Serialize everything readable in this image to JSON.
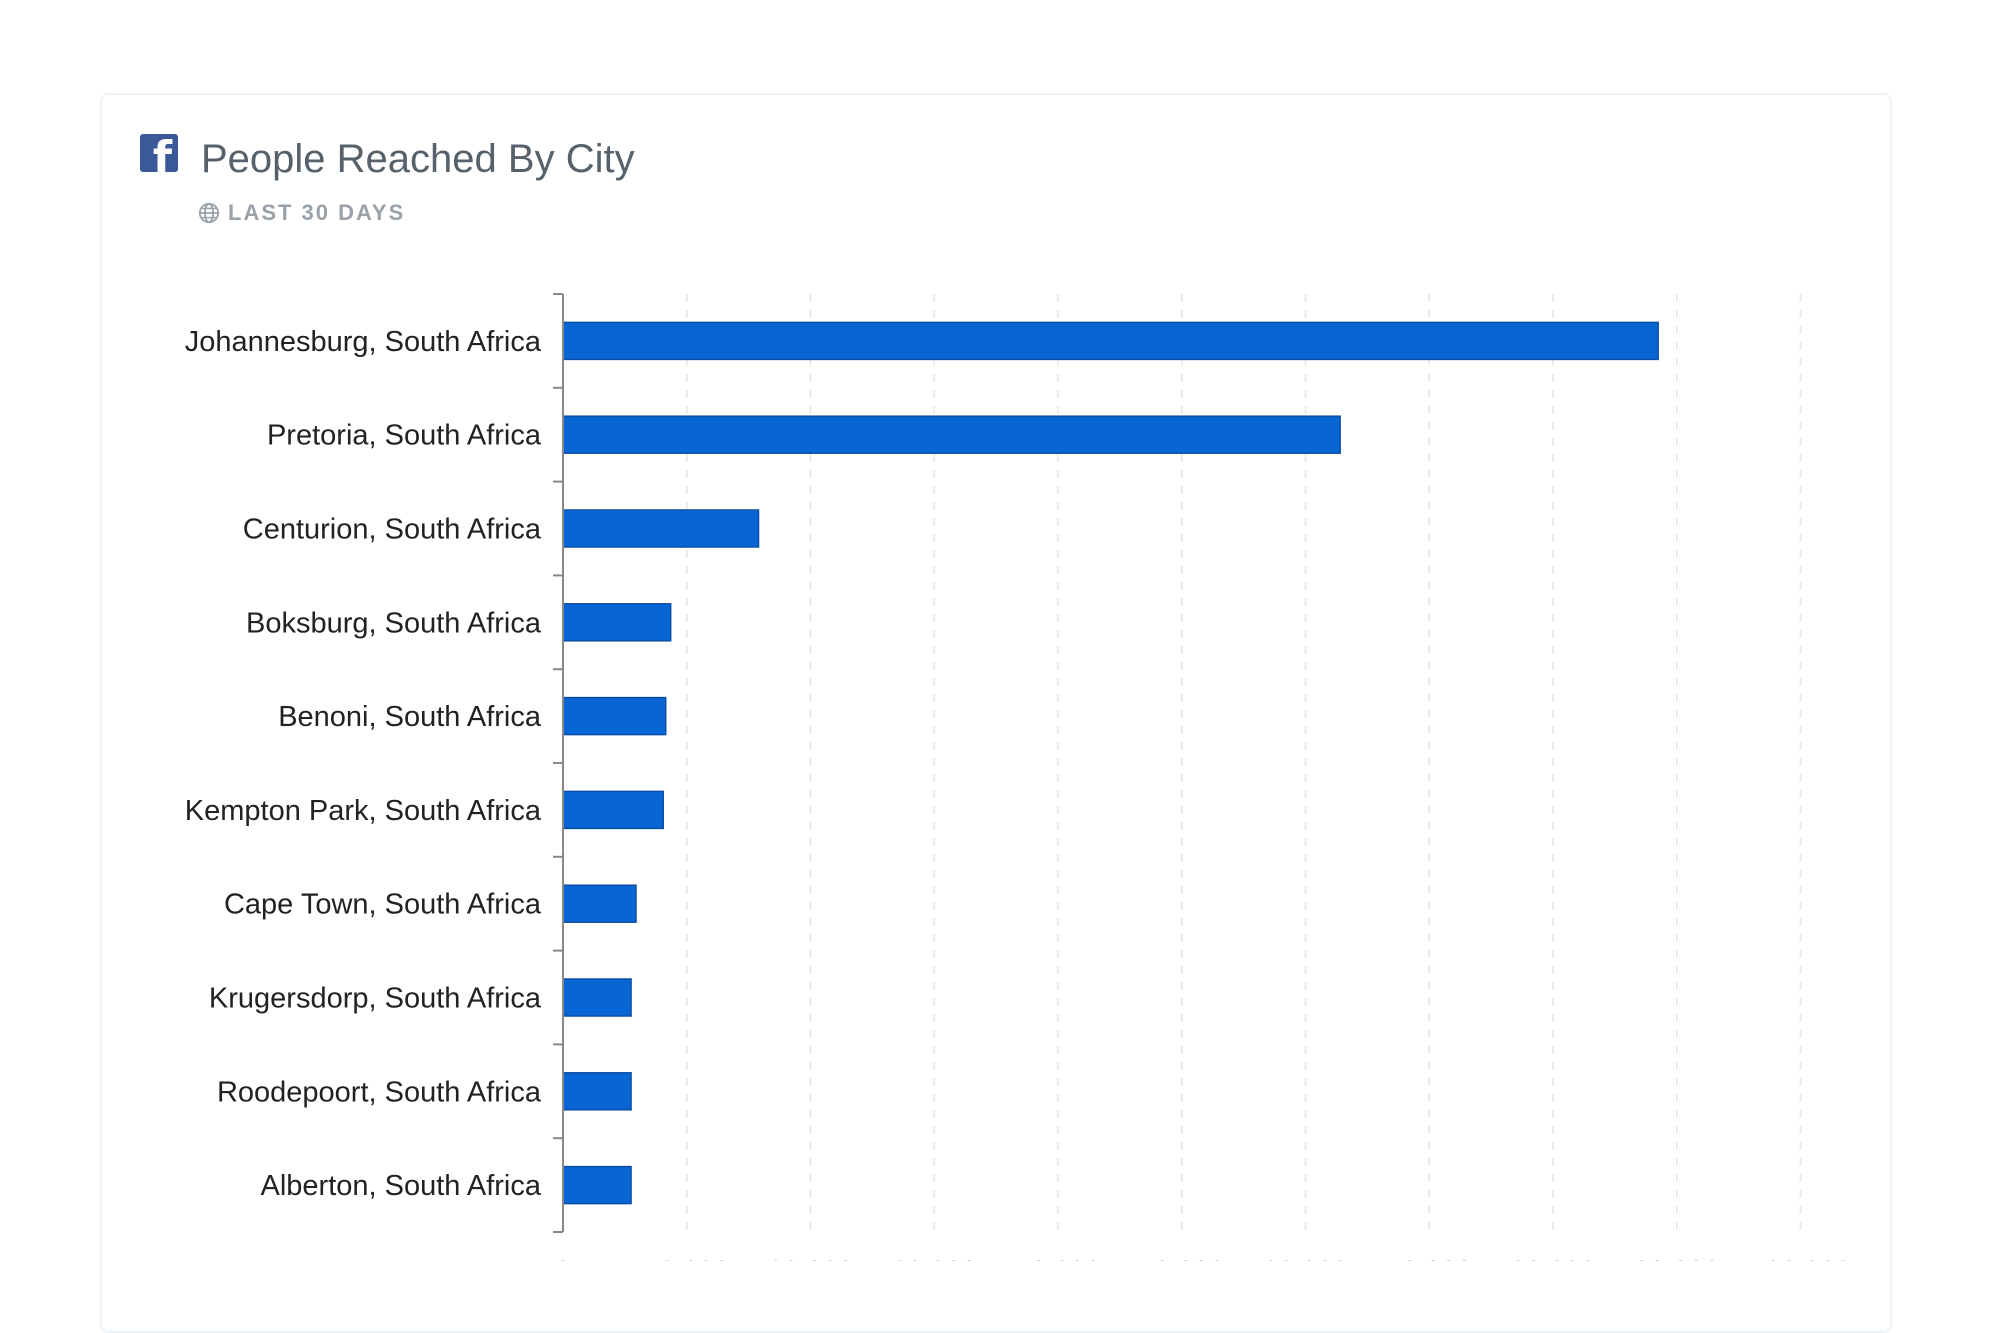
{
  "header": {
    "icon": "facebook-icon",
    "title": "People Reached By City",
    "subtitle_icon": "globe-icon",
    "subtitle": "LAST 30 DAYS"
  },
  "colors": {
    "bar_fill": "#0866d4",
    "bar_stroke": "#0a4ea8",
    "axis": "#888888",
    "grid": "#e6e6e6",
    "label_text": "#222222",
    "title_text": "#56616b",
    "subtitle_text": "#9aa1a8",
    "facebook_blue": "#3b5998"
  },
  "chart_data": {
    "type": "bar",
    "orientation": "horizontal",
    "categories": [
      "Johannesburg, South Africa",
      "Pretoria, South Africa",
      "Centurion, South Africa",
      "Boksburg, South Africa",
      "Benoni, South Africa",
      "Kempton Park, South Africa",
      "Cape Town, South Africa",
      "Krugersdorp, South Africa",
      "Roodepoort, South Africa",
      "Alberton, South Africa"
    ],
    "values": [
      88500,
      62800,
      15800,
      8700,
      8300,
      8100,
      5900,
      5500,
      5500,
      5500
    ],
    "x_ticks": [
      "0",
      "10 000",
      "20 000",
      "30 000",
      "40 000",
      "50 000",
      "60 000",
      "70 000",
      "80 000",
      "90 000",
      "100 000"
    ],
    "xlim": [
      0,
      100000
    ],
    "title": "People Reached By City",
    "xlabel": "",
    "ylabel": "",
    "grid": true
  }
}
